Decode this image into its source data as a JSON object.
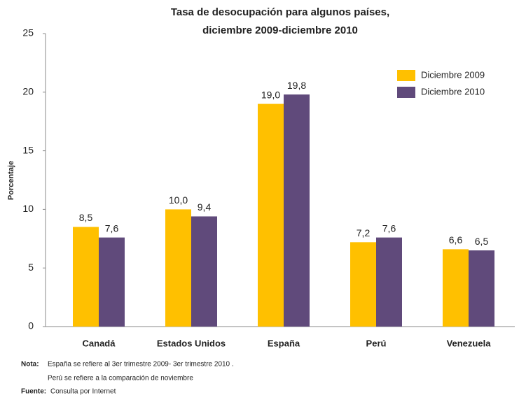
{
  "chart_data": {
    "type": "bar",
    "title": "Tasa de desocupación para algunos países,",
    "subtitle": "diciembre 2009-diciembre 2010",
    "y_label": "Porcentaje",
    "categories": [
      "Canadá",
      "Estados Unidos",
      "España",
      "Perú",
      "Venezuela"
    ],
    "series": [
      {
        "name": "Diciembre 2009",
        "color": "#ffc000",
        "values": [
          8.5,
          10.0,
          19.0,
          7.2,
          6.6
        ],
        "value_labels": [
          "8,5",
          "10,0",
          "19,0",
          "7,2",
          "6,6"
        ]
      },
      {
        "name": "Diciembre 2010",
        "color": "#604a7b",
        "values": [
          7.6,
          9.4,
          19.8,
          7.6,
          6.5
        ],
        "value_labels": [
          "7,6",
          "9,4",
          "19,8",
          "7,6",
          "6,5"
        ]
      }
    ],
    "ylim": [
      0,
      25
    ],
    "yticks": [
      0,
      5,
      10,
      15,
      20,
      25
    ],
    "grid": false,
    "legend": "upper-right",
    "note_label": "Nota:",
    "notes": [
      "España se refiere al 3er trimestre 2009- 3er trimestre 2010 .",
      "Perú se refiere a la comparación de noviembre"
    ],
    "source_label": "Fuente:",
    "source": "Consulta por Internet"
  }
}
